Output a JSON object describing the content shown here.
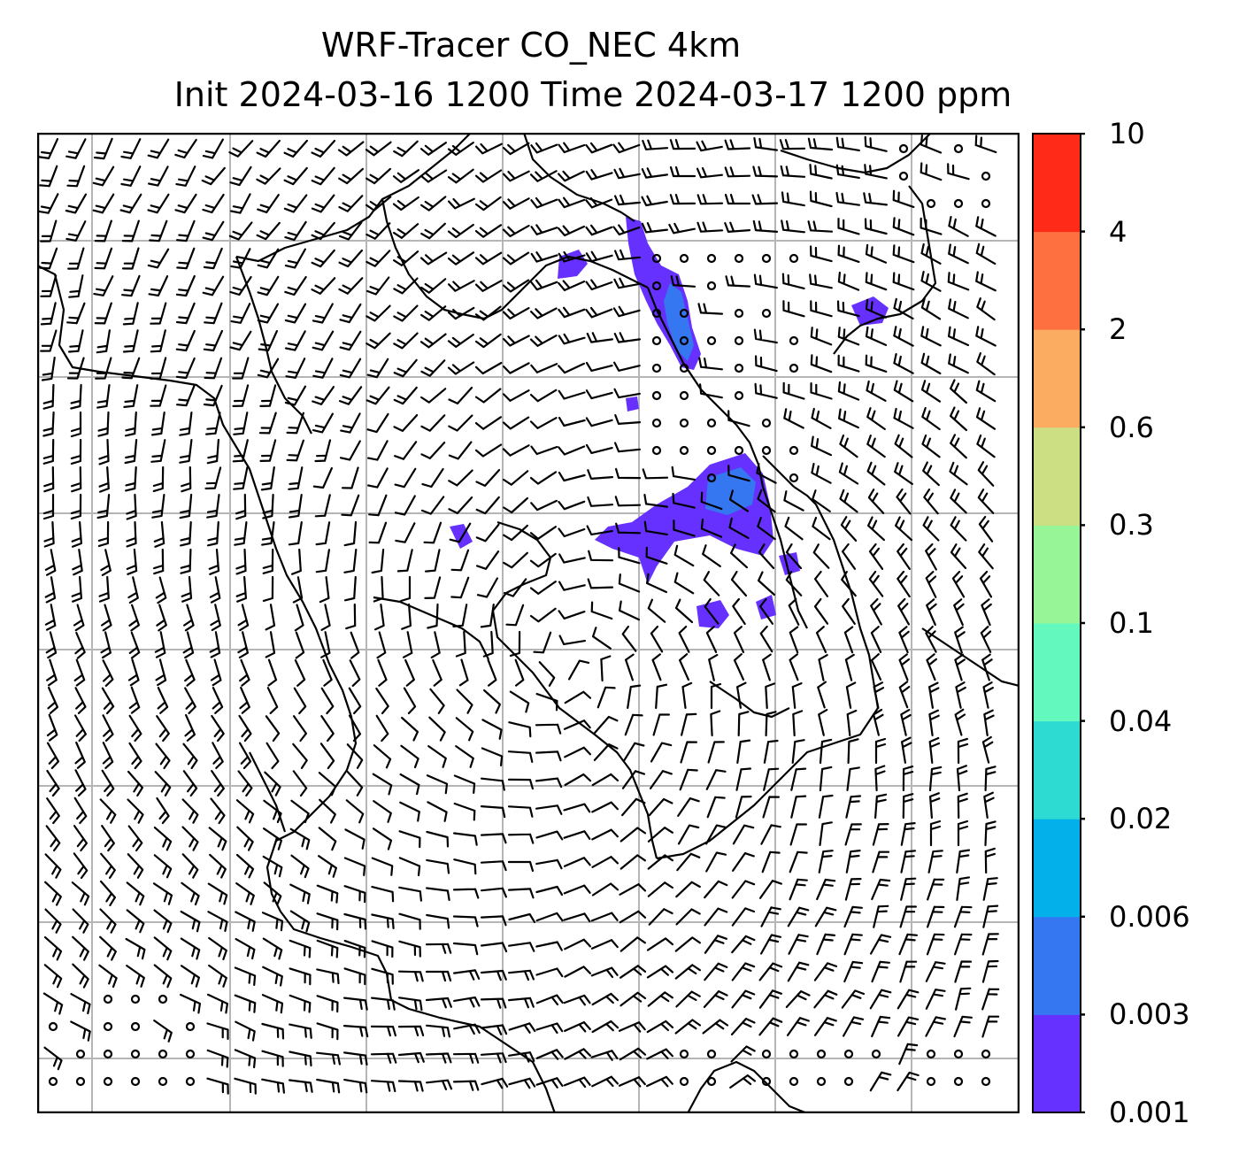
{
  "title": {
    "line1": "WRF-Tracer CO_NEC 4km",
    "line2": "Init 2024-03-16 1200 Time 2024-03-17 1200 ppm"
  },
  "colorbar": {
    "levels": [
      "0.001",
      "0.003",
      "0.006",
      "0.02",
      "0.04",
      "0.1",
      "0.3",
      "0.6",
      "2",
      "4",
      "10"
    ],
    "colors": [
      "#6630ff",
      "#3577f0",
      "#03b0ea",
      "#2ddbd2",
      "#63f8bd",
      "#98f597",
      "#ccdf82",
      "#fcac60",
      "#ff7040",
      "#ff2a18"
    ]
  },
  "map": {
    "field": "CO_NEC tracer concentration",
    "overlay": "wind barbs",
    "gridlines": true,
    "coastlines": true
  }
}
